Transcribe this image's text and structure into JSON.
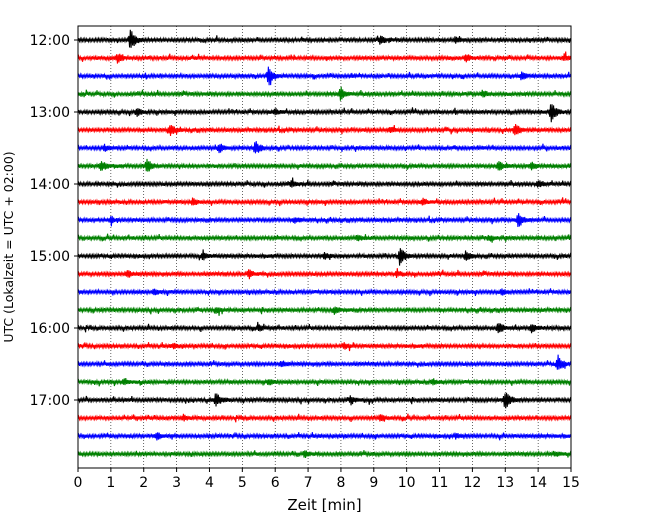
{
  "chart_data": {
    "type": "line",
    "title": "",
    "xlabel": "Zeit  [min]",
    "ylabel": "UTC (Lokalzeit = UTC + 02:00)",
    "xlim": [
      0,
      15
    ],
    "x_ticks": [
      "0",
      "1",
      "2",
      "3",
      "4",
      "5",
      "6",
      "7",
      "8",
      "9",
      "10",
      "11",
      "12",
      "13",
      "14",
      "15"
    ],
    "y_tick_labels": [
      "12:00",
      "13:00",
      "14:00",
      "15:00",
      "16:00",
      "17:00"
    ],
    "grid": "vertical-dotted",
    "color_cycle": [
      "#000000",
      "#ff0000",
      "#0000ff",
      "#008000"
    ],
    "rows": [
      {
        "start": "12:00",
        "events": [
          [
            1.6,
            1.0
          ],
          [
            9.2,
            0.4
          ],
          [
            11.5,
            0.3
          ]
        ]
      },
      {
        "start": "12:15",
        "events": [
          [
            1.2,
            0.45
          ],
          [
            11.8,
            0.35
          ],
          [
            14.8,
            0.3
          ]
        ]
      },
      {
        "start": "12:30",
        "events": [
          [
            5.8,
            0.9
          ],
          [
            13.5,
            0.35
          ]
        ]
      },
      {
        "start": "12:45",
        "events": [
          [
            8.0,
            0.7
          ],
          [
            12.3,
            0.3
          ]
        ]
      },
      {
        "start": "13:00",
        "events": [
          [
            14.4,
            1.0
          ],
          [
            1.8,
            0.35
          ],
          [
            6.0,
            0.3
          ]
        ]
      },
      {
        "start": "13:15",
        "events": [
          [
            2.8,
            0.55
          ],
          [
            13.3,
            0.7
          ],
          [
            9.5,
            0.3
          ]
        ]
      },
      {
        "start": "13:30",
        "events": [
          [
            4.3,
            0.45
          ],
          [
            5.4,
            0.65
          ],
          [
            0.8,
            0.3
          ]
        ]
      },
      {
        "start": "13:45",
        "events": [
          [
            0.7,
            0.55
          ],
          [
            2.1,
            0.75
          ],
          [
            12.8,
            0.5
          ],
          [
            13.8,
            0.45
          ]
        ]
      },
      {
        "start": "14:00",
        "events": [
          [
            6.5,
            0.3
          ],
          [
            14.0,
            0.35
          ]
        ]
      },
      {
        "start": "14:15",
        "events": [
          [
            3.5,
            0.35
          ],
          [
            10.5,
            0.3
          ]
        ]
      },
      {
        "start": "14:30",
        "events": [
          [
            13.4,
            0.75
          ],
          [
            6.6,
            0.3
          ],
          [
            1.0,
            0.25
          ]
        ]
      },
      {
        "start": "14:45",
        "events": [
          [
            8.5,
            0.3
          ],
          [
            12.5,
            0.25
          ]
        ]
      },
      {
        "start": "15:00",
        "events": [
          [
            9.8,
            1.0
          ],
          [
            11.8,
            0.45
          ],
          [
            3.8,
            0.4
          ],
          [
            7.5,
            0.35
          ]
        ]
      },
      {
        "start": "15:15",
        "events": [
          [
            5.2,
            0.4
          ],
          [
            1.5,
            0.35
          ],
          [
            9.7,
            0.3
          ]
        ]
      },
      {
        "start": "15:30",
        "events": [
          [
            2.3,
            0.35
          ],
          [
            12.9,
            0.3
          ]
        ]
      },
      {
        "start": "15:45",
        "events": [
          [
            7.8,
            0.35
          ],
          [
            4.2,
            0.25
          ]
        ]
      },
      {
        "start": "16:00",
        "events": [
          [
            12.8,
            0.55
          ],
          [
            13.8,
            0.45
          ],
          [
            5.5,
            0.3
          ]
        ]
      },
      {
        "start": "16:15",
        "events": [
          [
            8.1,
            0.3
          ],
          [
            2.9,
            0.25
          ]
        ]
      },
      {
        "start": "16:30",
        "events": [
          [
            14.6,
            0.85
          ],
          [
            6.2,
            0.3
          ]
        ]
      },
      {
        "start": "16:45",
        "events": [
          [
            1.4,
            0.35
          ],
          [
            5.8,
            0.3
          ],
          [
            10.8,
            0.25
          ]
        ]
      },
      {
        "start": "17:00",
        "events": [
          [
            4.2,
            0.7
          ],
          [
            13.0,
            1.0
          ],
          [
            8.3,
            0.4
          ]
        ]
      },
      {
        "start": "17:15",
        "events": [
          [
            9.2,
            0.35
          ],
          [
            3.2,
            0.25
          ]
        ]
      },
      {
        "start": "17:30",
        "events": [
          [
            2.4,
            0.35
          ],
          [
            11.5,
            0.25
          ]
        ]
      },
      {
        "start": "17:45",
        "events": [
          [
            6.9,
            0.3
          ],
          [
            14.5,
            0.25
          ]
        ]
      }
    ]
  }
}
